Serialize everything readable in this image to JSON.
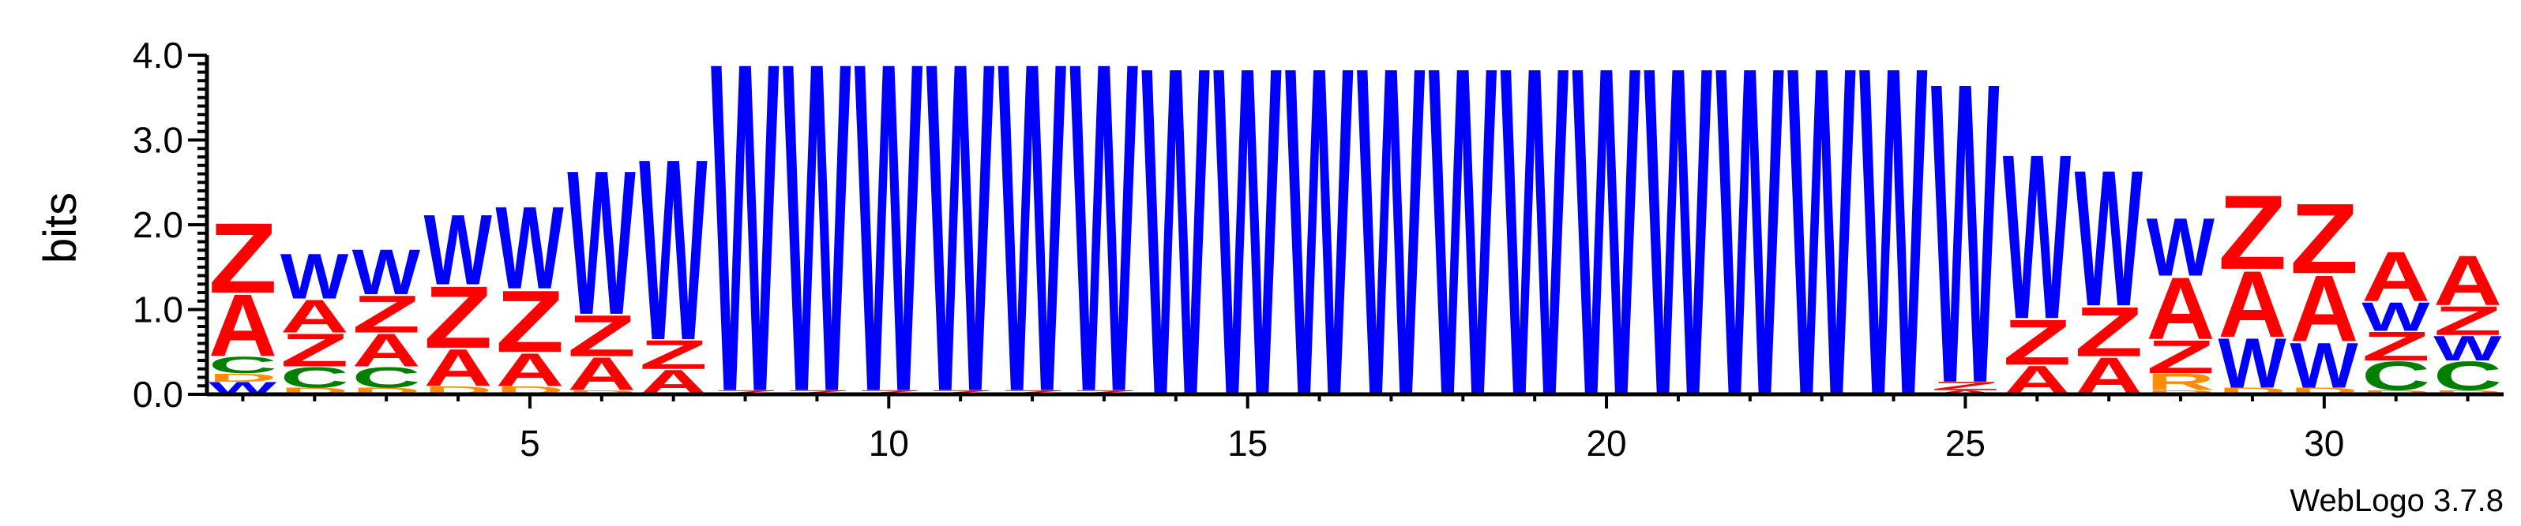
{
  "chart_data": {
    "type": "sequence-logo",
    "title": "",
    "xlabel": "",
    "ylabel": "bits",
    "ylim": [
      0,
      4.0
    ],
    "xlim": [
      0.5,
      32.5
    ],
    "y_ticks": [
      "0.0",
      "1.0",
      "2.0",
      "3.0",
      "4.0"
    ],
    "x_ticks": [
      "5",
      "10",
      "15",
      "20",
      "25",
      "30"
    ],
    "grid": false,
    "footer": "WebLogo 3.7.8",
    "colors": {
      "W": "#0000ff",
      "Z": "#ff0000",
      "A": "#ff0000",
      "C": "#008000",
      "D": "#ff8c00",
      "R": "#ff8c00"
    },
    "positions": [
      {
        "pos": 1,
        "letters": [
          [
            "W",
            0.15
          ],
          [
            "D",
            0.1
          ],
          [
            "C",
            0.2
          ],
          [
            "A",
            0.75
          ],
          [
            "Z",
            0.85
          ]
        ]
      },
      {
        "pos": 2,
        "letters": [
          [
            "D",
            0.08
          ],
          [
            "C",
            0.25
          ],
          [
            "Z",
            0.4
          ],
          [
            "A",
            0.4
          ],
          [
            "W",
            0.55
          ]
        ]
      },
      {
        "pos": 3,
        "letters": [
          [
            "D",
            0.08
          ],
          [
            "C",
            0.25
          ],
          [
            "A",
            0.4
          ],
          [
            "Z",
            0.45
          ],
          [
            "W",
            0.55
          ]
        ]
      },
      {
        "pos": 4,
        "letters": [
          [
            "D",
            0.1
          ],
          [
            "A",
            0.45
          ],
          [
            "Z",
            0.75
          ],
          [
            "W",
            0.85
          ]
        ]
      },
      {
        "pos": 5,
        "letters": [
          [
            "D",
            0.1
          ],
          [
            "A",
            0.4
          ],
          [
            "Z",
            0.75
          ],
          [
            "W",
            1.0
          ]
        ]
      },
      {
        "pos": 6,
        "letters": [
          [
            "D",
            0.05
          ],
          [
            "A",
            0.4
          ],
          [
            "Z",
            0.5
          ],
          [
            "W",
            1.75
          ]
        ]
      },
      {
        "pos": 7,
        "letters": [
          [
            "A",
            0.3
          ],
          [
            "Z",
            0.35
          ],
          [
            "W",
            2.2
          ]
        ]
      },
      {
        "pos": 8,
        "letters": [
          [
            "Z",
            0.05
          ],
          [
            "W",
            4.0
          ]
        ]
      },
      {
        "pos": 9,
        "letters": [
          [
            "Z",
            0.05
          ],
          [
            "W",
            4.0
          ]
        ]
      },
      {
        "pos": 10,
        "letters": [
          [
            "Z",
            0.05
          ],
          [
            "W",
            4.0
          ]
        ]
      },
      {
        "pos": 11,
        "letters": [
          [
            "Z",
            0.05
          ],
          [
            "W",
            4.0
          ]
        ]
      },
      {
        "pos": 12,
        "letters": [
          [
            "Z",
            0.05
          ],
          [
            "W",
            4.0
          ]
        ]
      },
      {
        "pos": 13,
        "letters": [
          [
            "Z",
            0.05
          ],
          [
            "W",
            4.0
          ]
        ]
      },
      {
        "pos": 14,
        "letters": [
          [
            "W",
            4.0
          ]
        ]
      },
      {
        "pos": 15,
        "letters": [
          [
            "W",
            4.0
          ]
        ]
      },
      {
        "pos": 16,
        "letters": [
          [
            "W",
            4.0
          ]
        ]
      },
      {
        "pos": 17,
        "letters": [
          [
            "W",
            4.0
          ]
        ]
      },
      {
        "pos": 18,
        "letters": [
          [
            "W",
            4.0
          ]
        ]
      },
      {
        "pos": 19,
        "letters": [
          [
            "W",
            4.0
          ]
        ]
      },
      {
        "pos": 20,
        "letters": [
          [
            "W",
            4.0
          ]
        ]
      },
      {
        "pos": 21,
        "letters": [
          [
            "W",
            4.0
          ]
        ]
      },
      {
        "pos": 22,
        "letters": [
          [
            "W",
            4.0
          ]
        ]
      },
      {
        "pos": 23,
        "letters": [
          [
            "W",
            4.0
          ]
        ]
      },
      {
        "pos": 24,
        "letters": [
          [
            "W",
            4.0
          ]
        ]
      },
      {
        "pos": 25,
        "letters": [
          [
            "A",
            0.05
          ],
          [
            "Z",
            0.1
          ],
          [
            "W",
            3.65
          ]
        ]
      },
      {
        "pos": 26,
        "letters": [
          [
            "A",
            0.35
          ],
          [
            "Z",
            0.55
          ],
          [
            "W",
            2.0
          ]
        ]
      },
      {
        "pos": 27,
        "letters": [
          [
            "A",
            0.45
          ],
          [
            "Z",
            0.6
          ],
          [
            "W",
            1.65
          ]
        ]
      },
      {
        "pos": 28,
        "letters": [
          [
            "D",
            0.05
          ],
          [
            "R",
            0.2
          ],
          [
            "Z",
            0.4
          ],
          [
            "A",
            0.75
          ],
          [
            "W",
            0.7
          ]
        ]
      },
      {
        "pos": 29,
        "letters": [
          [
            "D",
            0.08
          ],
          [
            "W",
            0.6
          ],
          [
            "A",
            0.8
          ],
          [
            "Z",
            0.9
          ]
        ]
      },
      {
        "pos": 30,
        "letters": [
          [
            "D",
            0.08
          ],
          [
            "W",
            0.55
          ],
          [
            "A",
            0.8
          ],
          [
            "Z",
            0.85
          ]
        ]
      },
      {
        "pos": 31,
        "letters": [
          [
            "D",
            0.05
          ],
          [
            "C",
            0.35
          ],
          [
            "Z",
            0.35
          ],
          [
            "W",
            0.35
          ],
          [
            "A",
            0.6
          ]
        ]
      },
      {
        "pos": 32,
        "letters": [
          [
            "D",
            0.05
          ],
          [
            "C",
            0.35
          ],
          [
            "W",
            0.3
          ],
          [
            "Z",
            0.35
          ],
          [
            "A",
            0.6
          ]
        ]
      }
    ]
  }
}
